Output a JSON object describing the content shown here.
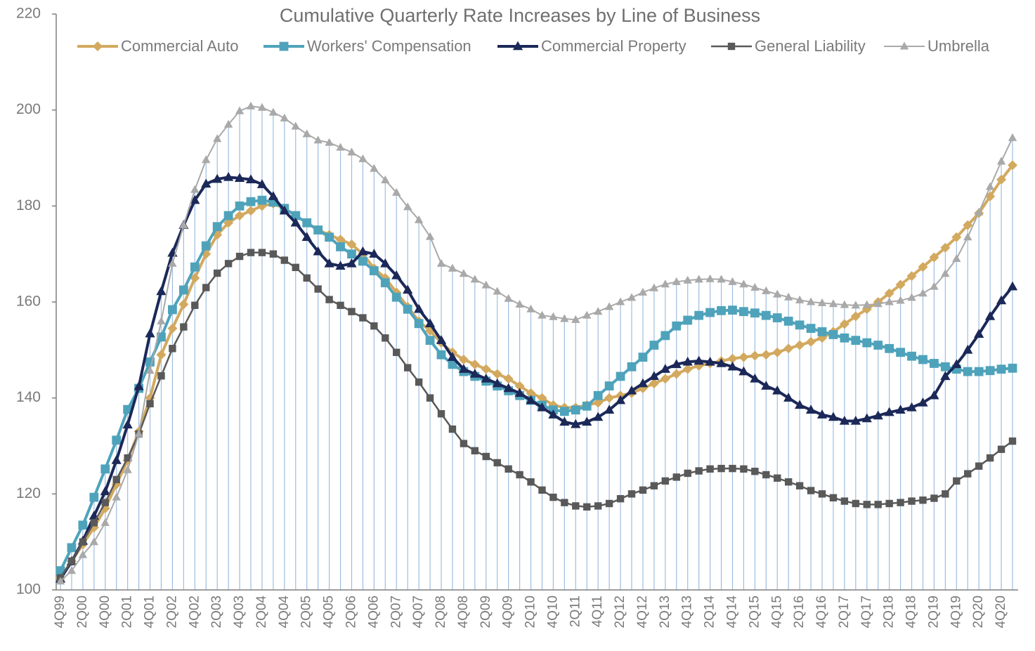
{
  "chart_data": {
    "type": "line",
    "title": "Cumulative Quarterly Rate Increases by Line of Business",
    "categories": [
      "4Q99",
      null,
      "2Q00",
      null,
      "4Q00",
      null,
      "2Q01",
      null,
      "4Q01",
      null,
      "2Q02",
      null,
      "4Q02",
      null,
      "2Q03",
      null,
      "4Q03",
      null,
      "2Q04",
      null,
      "4Q04",
      null,
      "2Q05",
      null,
      "4Q05",
      null,
      "2Q06",
      null,
      "4Q06",
      null,
      "2Q07",
      null,
      "4Q07",
      null,
      "2Q08",
      null,
      "4Q08",
      null,
      "2Q09",
      null,
      "4Q09",
      null,
      "2Q10",
      null,
      "4Q10",
      null,
      "2Q11",
      null,
      "4Q11",
      null,
      "2Q12",
      null,
      "4Q12",
      null,
      "2Q13",
      null,
      "4Q13",
      null,
      "2Q14",
      null,
      "4Q14",
      null,
      "2Q15",
      null,
      "4Q15",
      null,
      "2Q16",
      null,
      "4Q16",
      null,
      "2Q17",
      null,
      "4Q17",
      null,
      "2Q18",
      null,
      "4Q18",
      null,
      "2Q19",
      null,
      "4Q19",
      null,
      "2Q20",
      null,
      "4Q20",
      null
    ],
    "ylim": [
      100,
      220
    ],
    "yticks": [
      100,
      120,
      140,
      160,
      180,
      200,
      220
    ],
    "drop_lines": true,
    "legend": "top",
    "series": [
      {
        "name": "Commercial Auto",
        "color": "#d2a95f",
        "marker": "diamond",
        "values": [
          102.5,
          106,
          109.5,
          113,
          117,
          122,
          127,
          133,
          140,
          149,
          154.5,
          159.5,
          165,
          170,
          174,
          176.5,
          178,
          179,
          180,
          180.5,
          179.5,
          178,
          176.5,
          175,
          174,
          173,
          172,
          170,
          167,
          165,
          162,
          159,
          156,
          154,
          151.5,
          149.5,
          148,
          147,
          146,
          145,
          144,
          142.5,
          141,
          140,
          138.5,
          138,
          138,
          138.5,
          139,
          140,
          140.5,
          141,
          142,
          143,
          144,
          145,
          146,
          146.7,
          147.2,
          147.7,
          148.2,
          148.5,
          148.8,
          149,
          149.5,
          150.3,
          151,
          151.7,
          152.5,
          153.8,
          155.4,
          157,
          158.5,
          160,
          161.8,
          163.6,
          165.4,
          167.3,
          169.3,
          171.3,
          173.5,
          176,
          178.5,
          182,
          185.5,
          188.5
        ]
      },
      {
        "name": "Workers' Compensation",
        "color": "#4ea3bb",
        "marker": "square",
        "values": [
          104,
          108.8,
          113.5,
          119.3,
          125.2,
          131.2,
          137.6,
          142,
          147.5,
          152.7,
          158.4,
          162.5,
          167.3,
          171.7,
          175.7,
          178,
          180,
          180.9,
          181.2,
          180.8,
          179.5,
          178,
          176.5,
          175,
          173.5,
          171.5,
          170,
          168.5,
          166.5,
          164,
          161,
          158.5,
          155.5,
          152,
          149,
          147,
          145.5,
          144.5,
          143.5,
          142.5,
          141.5,
          140.5,
          139.5,
          138.5,
          137.5,
          137.2,
          137.5,
          138.3,
          140.5,
          142.5,
          144.5,
          146.5,
          148.5,
          151,
          153,
          155,
          156.2,
          157.2,
          157.8,
          158.2,
          158.3,
          158,
          157.7,
          157.2,
          156.7,
          156,
          155.2,
          154.5,
          153.8,
          153.2,
          152.5,
          152,
          151.5,
          151,
          150.3,
          149.5,
          148.7,
          148,
          147.2,
          146.5,
          146,
          145.5,
          145.5,
          145.7,
          146,
          146.2
        ]
      },
      {
        "name": "Commercial Property",
        "color": "#1b2858",
        "marker": "triangle",
        "values": [
          102.3,
          105.9,
          110.2,
          115.4,
          120.5,
          127,
          134.4,
          142.4,
          153.4,
          162.2,
          170.2,
          176,
          181.2,
          184.6,
          185.6,
          186,
          185.8,
          185.5,
          184.5,
          182,
          179,
          176.5,
          173.5,
          170.5,
          168,
          167.5,
          168,
          170.5,
          170,
          168,
          165.5,
          162.5,
          158.5,
          155.5,
          152,
          148.5,
          146,
          145,
          144,
          143,
          142,
          141,
          139.5,
          138,
          136.5,
          135,
          134.5,
          135,
          136,
          137.5,
          139.5,
          141.5,
          143,
          144.5,
          146,
          147,
          147.5,
          147.7,
          147.5,
          147.2,
          146.5,
          145.5,
          144,
          142.5,
          141.5,
          140,
          138.5,
          137.5,
          136.5,
          136,
          135.2,
          135.2,
          135.7,
          136.3,
          137,
          137.5,
          138,
          139,
          140.5,
          144.5,
          147,
          150,
          153.3,
          157,
          160.3,
          163.2
        ]
      },
      {
        "name": "General Liability",
        "color": "#595959",
        "marker": "square",
        "values": [
          102.5,
          106,
          110,
          114,
          118.2,
          123,
          127.5,
          132.5,
          138.8,
          144.6,
          150.3,
          154.8,
          159.3,
          163,
          166,
          168,
          169.5,
          170.3,
          170.3,
          170,
          168.7,
          167.2,
          165,
          162.7,
          160.5,
          159.3,
          158,
          156.7,
          155,
          152.5,
          149.5,
          146.3,
          143.3,
          140,
          136.7,
          133.5,
          130.5,
          129,
          127.8,
          126.5,
          125.2,
          124,
          122.5,
          120.8,
          119.3,
          118.2,
          117.5,
          117.3,
          117.5,
          118,
          119,
          120,
          120.8,
          121.7,
          122.7,
          123.5,
          124.3,
          124.8,
          125.2,
          125.3,
          125.3,
          125.2,
          124.7,
          124,
          123.3,
          122.5,
          121.7,
          120.7,
          120,
          119.2,
          118.5,
          118,
          117.8,
          117.8,
          118,
          118.2,
          118.5,
          118.7,
          119.1,
          120,
          122.7,
          124.2,
          125.8,
          127.5,
          129.3,
          131
        ]
      },
      {
        "name": "Umbrella",
        "color": "#a9a9a9",
        "marker": "triangle",
        "values": [
          101.8,
          104,
          107.3,
          110,
          114,
          119.3,
          125,
          132.5,
          145.7,
          156,
          168,
          176,
          183.4,
          189.6,
          194,
          197,
          199.8,
          200.8,
          200.5,
          199.5,
          198.3,
          196.6,
          195,
          193.7,
          193.2,
          192.2,
          191.2,
          189.8,
          187.8,
          185.4,
          182.8,
          179.8,
          177.1,
          173.6,
          168,
          167,
          165.9,
          164.7,
          163.5,
          162.2,
          160.7,
          159.5,
          158.5,
          157.2,
          156.9,
          156.5,
          156.3,
          157.2,
          158,
          159,
          160,
          160.9,
          162,
          162.9,
          163.7,
          164.2,
          164.5,
          164.7,
          164.8,
          164.7,
          164.2,
          163.7,
          163,
          162.3,
          161.6,
          161,
          160.4,
          160,
          159.8,
          159.6,
          159.4,
          159.3,
          159.4,
          159.6,
          160,
          160.3,
          160.9,
          161.8,
          163.2,
          165.9,
          169,
          173.5,
          178.7,
          184,
          189.3,
          194.2
        ]
      }
    ]
  }
}
